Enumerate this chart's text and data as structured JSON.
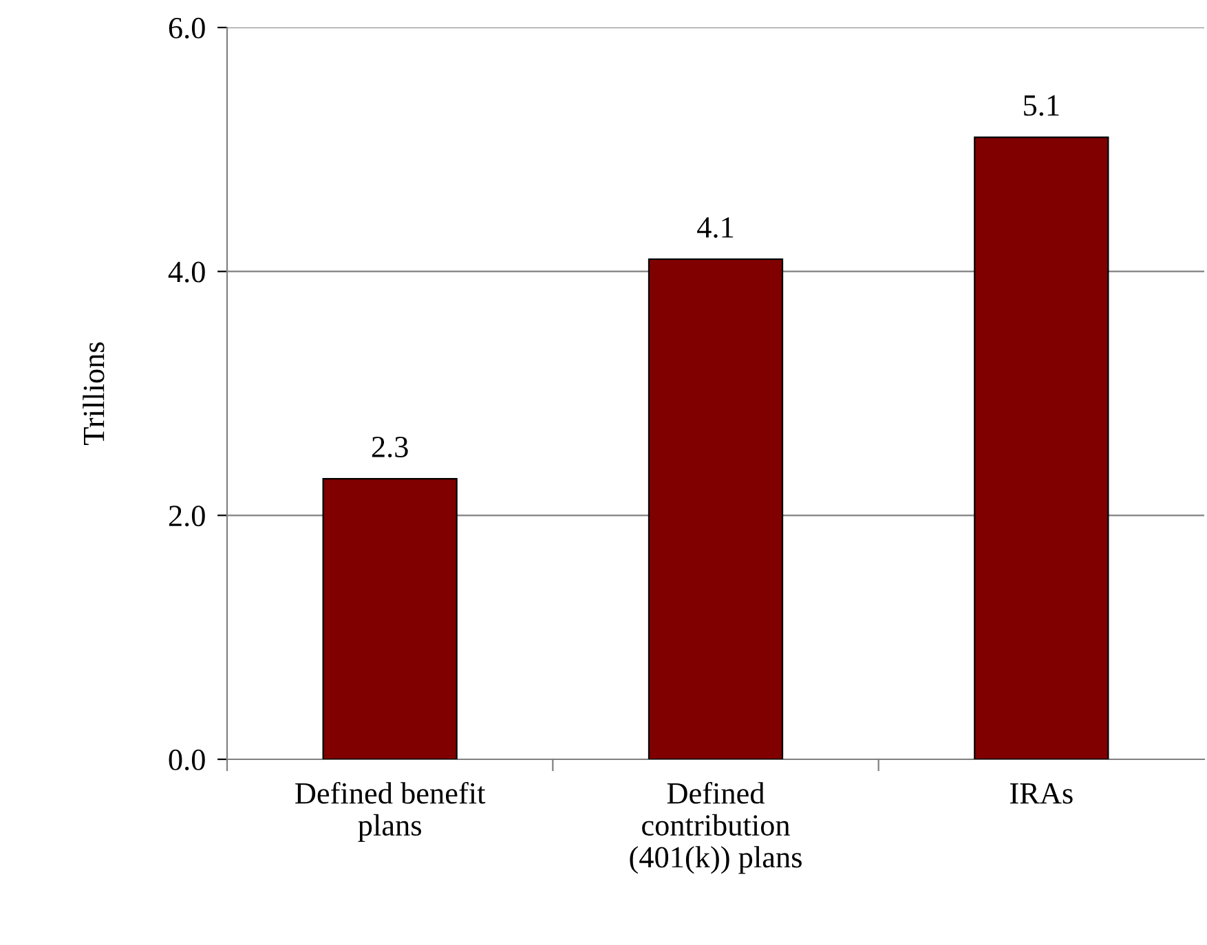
{
  "chart_data": {
    "type": "bar",
    "ylabel": "Trillions",
    "categories": [
      "Defined benefit\nplans",
      "Defined\ncontribution\n(401(k)) plans",
      "IRAs"
    ],
    "values": [
      2.3,
      4.1,
      5.1
    ],
    "color": "#800000",
    "ylim": [
      0,
      6
    ],
    "yticks": [
      {
        "value": 0,
        "label": "0.0"
      },
      {
        "value": 2,
        "label": "2.0"
      },
      {
        "value": 4,
        "label": "4.0"
      },
      {
        "value": 6,
        "label": "6.0"
      }
    ],
    "grid": "y",
    "data_labels": true,
    "legend": false
  }
}
